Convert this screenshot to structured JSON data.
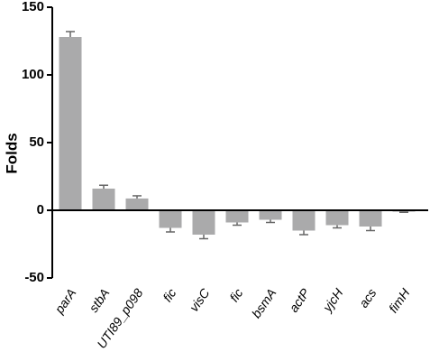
{
  "chart_data": {
    "type": "bar",
    "y_label": "Folds",
    "categories": [
      "parA",
      "stbA",
      "UTI89_p098",
      "fic",
      "visC",
      "fic",
      "bsmA",
      "actP",
      "yjcH",
      "acs",
      "fimH"
    ],
    "values": [
      128,
      16,
      8.7,
      -13,
      -18,
      -9,
      -7,
      -15,
      -11,
      -12,
      -1
    ],
    "errors": [
      4,
      2.5,
      2,
      3,
      3,
      2,
      2,
      3,
      2,
      3,
      0.5
    ],
    "color": "#aaaaab",
    "error_color": "#666666",
    "ylim": [
      -50,
      150
    ],
    "yticks": [
      -50,
      0,
      50,
      100,
      150
    ]
  }
}
